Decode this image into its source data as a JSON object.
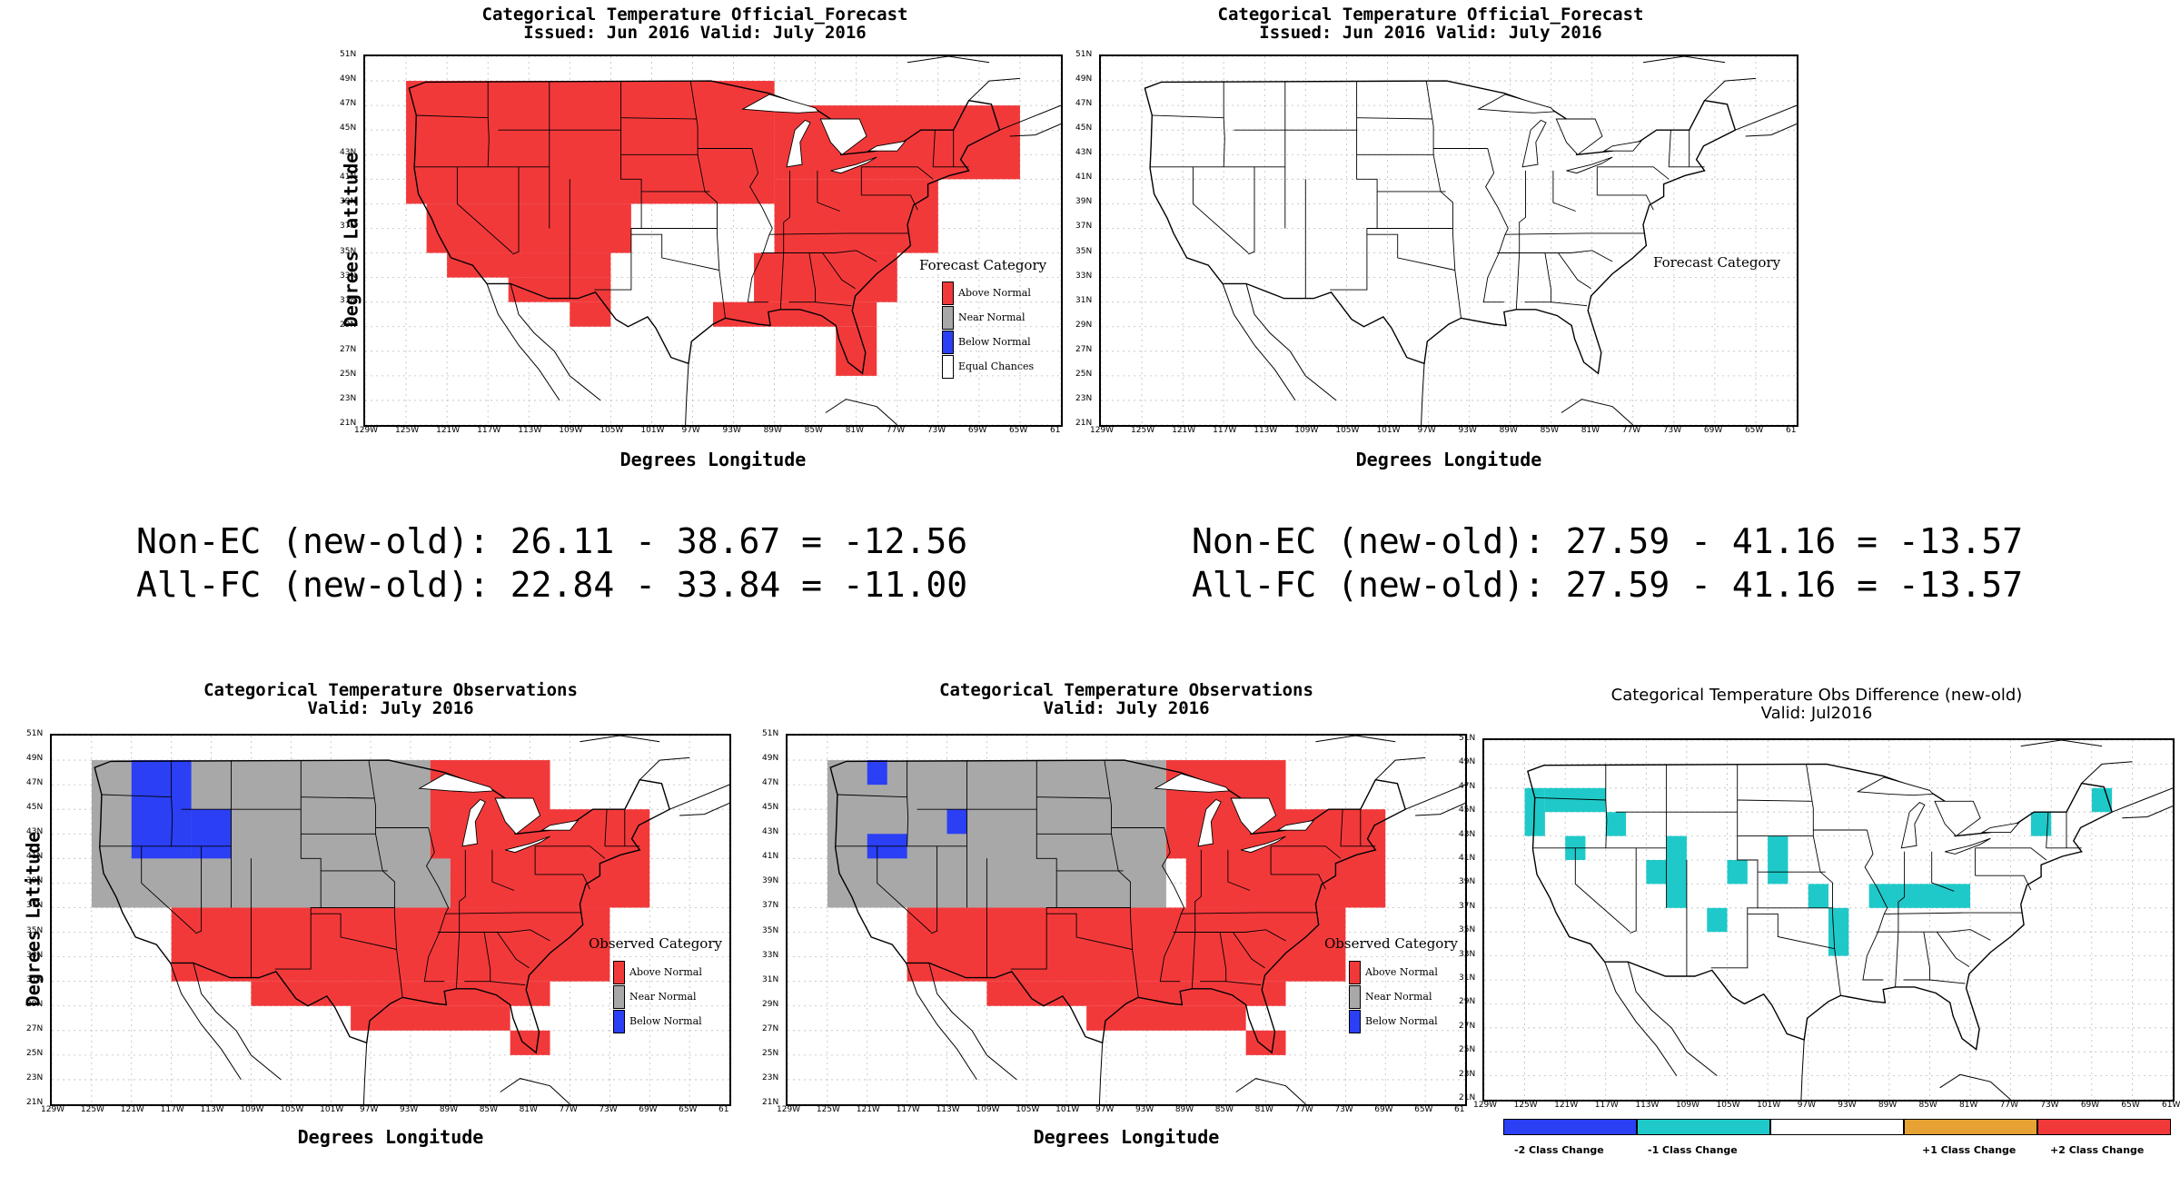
{
  "colors": {
    "above": "#f2393a",
    "near": "#a8a8a8",
    "below": "#2b3ff5",
    "cyan": "#1fc9c9",
    "orange": "#e6a233",
    "red": "#f2393a",
    "blue": "#2b3ff5"
  },
  "lat_ticks": [
    "51N",
    "49N",
    "47N",
    "45N",
    "43N",
    "41N",
    "39N",
    "37N",
    "35N",
    "33N",
    "31N",
    "29N",
    "27N",
    "25N",
    "23N",
    "21N"
  ],
  "lon_ticks": [
    "129W",
    "125W",
    "121W",
    "117W",
    "113W",
    "109W",
    "105W",
    "101W",
    "97W",
    "93W",
    "89W",
    "85W",
    "81W",
    "77W",
    "73W",
    "69W",
    "65W",
    "61"
  ],
  "lon_ticks_diff": [
    "129W",
    "125W",
    "121W",
    "117W",
    "113W",
    "109W",
    "105W",
    "101W",
    "97W",
    "93W",
    "89W",
    "85W",
    "81W",
    "77W",
    "73W",
    "69W",
    "65W",
    "61W"
  ],
  "axis": {
    "ylabel": "Degrees Latitude",
    "xlabel": "Degrees Longitude"
  },
  "panels": {
    "fc1": {
      "title1": "Categorical Temperature Official_Forecast",
      "title2": "Issued: Jun 2016 Valid: July 2016",
      "legend_title": "Forecast Category",
      "legend": [
        "Above Normal",
        "Near Normal",
        "Below Normal",
        "Equal Chances"
      ]
    },
    "fc2": {
      "title1": "Categorical Temperature Official_Forecast",
      "title2": "Issued: Jun 2016 Valid: July 2016",
      "legend_title": "Forecast Category"
    },
    "ob1": {
      "title1": "Categorical Temperature Observations",
      "title2": "Valid: July 2016",
      "legend_title": "Observed Category",
      "legend": [
        "Above Normal",
        "Near Normal",
        "Below Normal"
      ]
    },
    "ob2": {
      "title1": "Categorical Temperature Observations",
      "title2": "Valid: July 2016",
      "legend_title": "Observed Category",
      "legend": [
        "Above Normal",
        "Near Normal",
        "Below Normal"
      ]
    },
    "diff": {
      "title1": "Categorical Temperature Obs Difference (new-old)",
      "title2": "Valid: Jul2016",
      "colorbar": [
        "-2 Class Change",
        "-1 Class Change",
        "+1 Class Change",
        "+2 Class Change"
      ]
    }
  },
  "stats": {
    "left_line1": "Non-EC (new-old): 26.11 - 38.67 = -12.56",
    "left_line2": "All-FC (new-old): 22.84 - 33.84 = -11.00",
    "right_line1": "Non-EC (new-old): 27.59 - 41.16 = -13.57",
    "right_line2": "All-FC (new-old): 27.59 - 41.16 = -13.57"
  },
  "chart_data": [
    {
      "type": "heatmap",
      "title": "Categorical Temperature Official_Forecast",
      "subtitle": "Issued: Jun 2016 Valid: July 2016",
      "xlabel": "Degrees Longitude",
      "ylabel": "Degrees Latitude",
      "xlim": [
        -129,
        -61
      ],
      "ylim": [
        21,
        51
      ],
      "categories": [
        "Above Normal",
        "Near Normal",
        "Below Normal",
        "Equal Chances"
      ],
      "cells": [
        {
          "cat": "Above Normal",
          "lon": [
            -125,
            -89
          ],
          "lat": [
            39,
            49
          ]
        },
        {
          "cat": "Above Normal",
          "lon": [
            -123,
            -103
          ],
          "lat": [
            35,
            39
          ]
        },
        {
          "cat": "Above Normal",
          "lon": [
            -121,
            -105
          ],
          "lat": [
            33,
            35
          ]
        },
        {
          "cat": "Above Normal",
          "lon": [
            -115,
            -105
          ],
          "lat": [
            31,
            33
          ]
        },
        {
          "cat": "Above Normal",
          "lon": [
            -109,
            -105
          ],
          "lat": [
            29,
            31
          ]
        },
        {
          "cat": "Above Normal",
          "lon": [
            -89,
            -65
          ],
          "lat": [
            41,
            47
          ]
        },
        {
          "cat": "Above Normal",
          "lon": [
            -89,
            -73
          ],
          "lat": [
            35,
            41
          ]
        },
        {
          "cat": "Above Normal",
          "lon": [
            -91,
            -77
          ],
          "lat": [
            31,
            35
          ]
        },
        {
          "cat": "Above Normal",
          "lon": [
            -95,
            -79
          ],
          "lat": [
            29,
            31
          ]
        },
        {
          "cat": "Above Normal",
          "lon": [
            -83,
            -79
          ],
          "lat": [
            25,
            29
          ]
        }
      ]
    },
    {
      "type": "heatmap",
      "title": "Categorical Temperature Official_Forecast",
      "subtitle": "Issued: Jun 2016 Valid: July 2016",
      "xlabel": "Degrees Longitude",
      "ylabel": "Degrees Latitude",
      "xlim": [
        -129,
        -61
      ],
      "ylim": [
        21,
        51
      ],
      "categories": [
        "Equal Chances"
      ],
      "cells": []
    },
    {
      "type": "heatmap",
      "title": "Categorical Temperature Observations",
      "subtitle": "Valid: July 2016",
      "xlabel": "Degrees Longitude",
      "ylabel": "Degrees Latitude",
      "xlim": [
        -129,
        -61
      ],
      "ylim": [
        21,
        51
      ],
      "categories": [
        "Above Normal",
        "Near Normal",
        "Below Normal"
      ],
      "cells": [
        {
          "cat": "Near Normal",
          "lon": [
            -125,
            -89
          ],
          "lat": [
            37,
            49
          ]
        },
        {
          "cat": "Below Normal",
          "lon": [
            -121,
            -115
          ],
          "lat": [
            41,
            49
          ]
        },
        {
          "cat": "Below Normal",
          "lon": [
            -115,
            -111
          ],
          "lat": [
            41,
            45
          ]
        },
        {
          "cat": "Above Normal",
          "lon": [
            -91,
            -79
          ],
          "lat": [
            41,
            49
          ]
        },
        {
          "cat": "Above Normal",
          "lon": [
            -89,
            -69
          ],
          "lat": [
            37,
            45
          ]
        },
        {
          "cat": "Above Normal",
          "lon": [
            -117,
            -73
          ],
          "lat": [
            31,
            37
          ]
        },
        {
          "cat": "Above Normal",
          "lon": [
            -109,
            -79
          ],
          "lat": [
            29,
            31
          ]
        },
        {
          "cat": "Above Normal",
          "lon": [
            -99,
            -83
          ],
          "lat": [
            27,
            29
          ]
        },
        {
          "cat": "Above Normal",
          "lon": [
            -83,
            -79
          ],
          "lat": [
            25,
            27
          ]
        }
      ]
    },
    {
      "type": "heatmap",
      "title": "Categorical Temperature Observations",
      "subtitle": "Valid: July 2016",
      "xlabel": "Degrees Longitude",
      "ylabel": "Degrees Latitude",
      "xlim": [
        -129,
        -61
      ],
      "ylim": [
        21,
        51
      ],
      "categories": [
        "Above Normal",
        "Near Normal",
        "Below Normal"
      ],
      "cells": [
        {
          "cat": "Near Normal",
          "lon": [
            -125,
            -91
          ],
          "lat": [
            37,
            49
          ]
        },
        {
          "cat": "Below Normal",
          "lon": [
            -121,
            -119
          ],
          "lat": [
            47,
            49
          ]
        },
        {
          "cat": "Below Normal",
          "lon": [
            -121,
            -117
          ],
          "lat": [
            41,
            43
          ]
        },
        {
          "cat": "Below Normal",
          "lon": [
            -113,
            -111
          ],
          "lat": [
            43,
            45
          ]
        },
        {
          "cat": "Above Normal",
          "lon": [
            -91,
            -79
          ],
          "lat": [
            41,
            49
          ]
        },
        {
          "cat": "Above Normal",
          "lon": [
            -89,
            -69
          ],
          "lat": [
            37,
            45
          ]
        },
        {
          "cat": "Above Normal",
          "lon": [
            -117,
            -73
          ],
          "lat": [
            31,
            37
          ]
        },
        {
          "cat": "Above Normal",
          "lon": [
            -109,
            -79
          ],
          "lat": [
            29,
            31
          ]
        },
        {
          "cat": "Above Normal",
          "lon": [
            -99,
            -83
          ],
          "lat": [
            27,
            29
          ]
        },
        {
          "cat": "Above Normal",
          "lon": [
            -83,
            -79
          ],
          "lat": [
            25,
            27
          ]
        }
      ]
    },
    {
      "type": "heatmap",
      "title": "Categorical Temperature Obs Difference (new-old)",
      "subtitle": "Valid: Jul2016",
      "xlabel": "",
      "ylabel": "",
      "xlim": [
        -129,
        -61
      ],
      "ylim": [
        21,
        51
      ],
      "categories": [
        "-2 Class Change",
        "-1 Class Change",
        "+1 Class Change",
        "+2 Class Change"
      ],
      "cells": [
        {
          "cat": "-1 Class Change",
          "lon": [
            -125,
            -123
          ],
          "lat": [
            43,
            47
          ]
        },
        {
          "cat": "-1 Class Change",
          "lon": [
            -123,
            -117
          ],
          "lat": [
            45,
            47
          ]
        },
        {
          "cat": "-1 Class Change",
          "lon": [
            -121,
            -119
          ],
          "lat": [
            41,
            43
          ]
        },
        {
          "cat": "-1 Class Change",
          "lon": [
            -117,
            -115
          ],
          "lat": [
            43,
            45
          ]
        },
        {
          "cat": "-1 Class Change",
          "lon": [
            -113,
            -111
          ],
          "lat": [
            39,
            41
          ]
        },
        {
          "cat": "-1 Class Change",
          "lon": [
            -111,
            -109
          ],
          "lat": [
            37,
            43
          ]
        },
        {
          "cat": "-1 Class Change",
          "lon": [
            -107,
            -105
          ],
          "lat": [
            35,
            37
          ]
        },
        {
          "cat": "-1 Class Change",
          "lon": [
            -105,
            -103
          ],
          "lat": [
            39,
            41
          ]
        },
        {
          "cat": "-1 Class Change",
          "lon": [
            -101,
            -99
          ],
          "lat": [
            39,
            43
          ]
        },
        {
          "cat": "-1 Class Change",
          "lon": [
            -97,
            -95
          ],
          "lat": [
            37,
            39
          ]
        },
        {
          "cat": "-1 Class Change",
          "lon": [
            -95,
            -93
          ],
          "lat": [
            33,
            37
          ]
        },
        {
          "cat": "-1 Class Change",
          "lon": [
            -91,
            -81
          ],
          "lat": [
            37,
            39
          ]
        },
        {
          "cat": "-1 Class Change",
          "lon": [
            -75,
            -73
          ],
          "lat": [
            43,
            45
          ]
        },
        {
          "cat": "-1 Class Change",
          "lon": [
            -69,
            -67
          ],
          "lat": [
            45,
            47
          ]
        }
      ]
    }
  ]
}
